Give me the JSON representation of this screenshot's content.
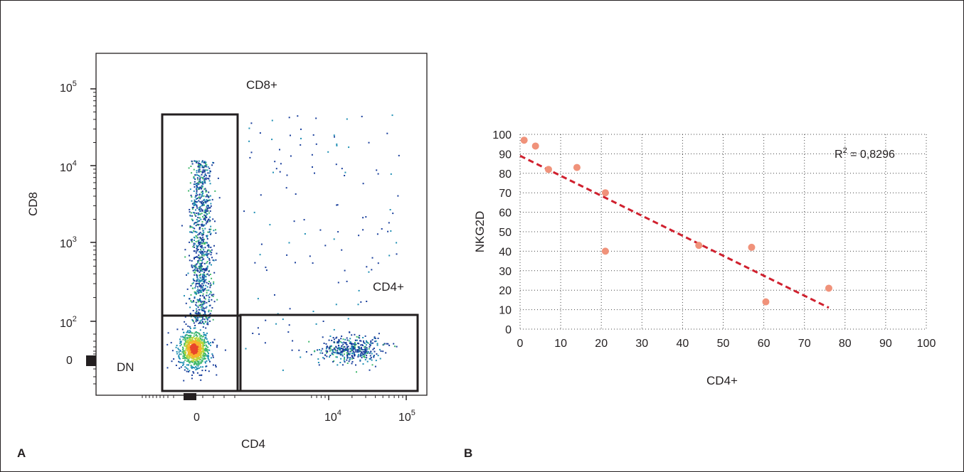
{
  "panels": {
    "a": {
      "letter": "A"
    },
    "b": {
      "letter": "B"
    }
  },
  "chart_data": [
    {
      "type": "scatter",
      "subtype": "flow-cytometry-density-plot",
      "xlabel": "CD4",
      "ylabel": "CD8",
      "x_scale": "biexponential",
      "y_scale": "biexponential",
      "x_ticks": [
        {
          "base": "0",
          "exp": ""
        },
        {
          "base": "10",
          "exp": "4"
        },
        {
          "base": "10",
          "exp": "5"
        }
      ],
      "y_ticks": [
        {
          "base": "10",
          "exp": "5"
        },
        {
          "base": "10",
          "exp": "4"
        },
        {
          "base": "10",
          "exp": "3"
        },
        {
          "base": "10",
          "exp": "2"
        },
        {
          "base": "0",
          "exp": ""
        }
      ],
      "gates": [
        {
          "label": "CD8+"
        },
        {
          "label": "CD4+"
        },
        {
          "label": "DN"
        }
      ],
      "populations": [
        {
          "name": "CD8+",
          "note": "vertical band at CD4 ≈ 0, CD8 ≈ 10^2.5–10^4"
        },
        {
          "name": "DN",
          "note": "dense cluster at CD4 ≈ 0, CD8 ≈ 0"
        },
        {
          "name": "CD4+",
          "note": "cluster at CD4 ≈ 10^4.2, CD8 ≈ 0"
        }
      ],
      "density_colors": [
        "#1a3f9c",
        "#1f8fb4",
        "#3fb86b",
        "#b8d63a",
        "#f7b32b",
        "#e8462b"
      ],
      "grid": false
    },
    {
      "type": "scatter",
      "xlabel": "CD4+",
      "ylabel": "NKG2D",
      "xlim": [
        0,
        100
      ],
      "ylim": [
        0,
        100
      ],
      "x_ticks": [
        0,
        10,
        20,
        30,
        40,
        50,
        60,
        70,
        80,
        90,
        100
      ],
      "y_ticks": [
        0,
        10,
        20,
        30,
        40,
        50,
        60,
        70,
        80,
        90,
        100
      ],
      "grid": true,
      "points": [
        {
          "x": 1,
          "y": 97
        },
        {
          "x": 3.8,
          "y": 94
        },
        {
          "x": 7,
          "y": 82
        },
        {
          "x": 14,
          "y": 83
        },
        {
          "x": 21,
          "y": 70
        },
        {
          "x": 21,
          "y": 40
        },
        {
          "x": 44,
          "y": 43
        },
        {
          "x": 57,
          "y": 42
        },
        {
          "x": 60.5,
          "y": 14
        },
        {
          "x": 76,
          "y": 21
        }
      ],
      "trendline": {
        "type": "linear",
        "x": [
          0,
          76
        ],
        "y": [
          89,
          11
        ],
        "color": "#d0202e",
        "style": "dashed"
      },
      "annotation": {
        "label": "R",
        "exp": "2",
        "value": " = 0,8296"
      },
      "point_color": "#f0927a"
    }
  ]
}
